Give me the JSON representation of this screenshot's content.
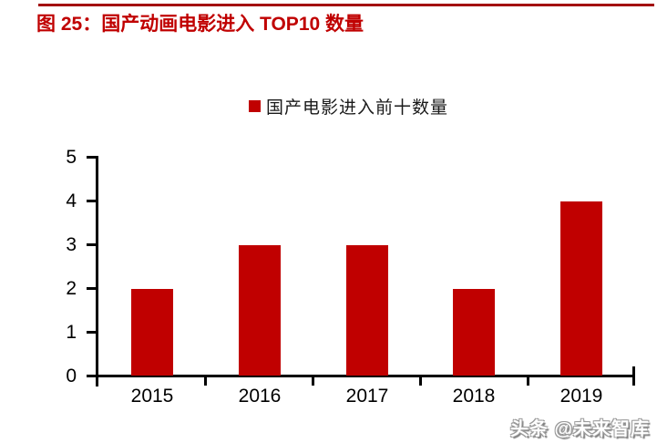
{
  "page": {
    "watermark": "头条 @未来智库"
  },
  "colors": {
    "title_red": "#c00000",
    "rule_red": "#a30f0f",
    "bar_red": "#c00000",
    "axis_black": "#000000",
    "legend_text": "#1a1a1a",
    "watermark_gray": "#9a9a9a"
  },
  "chart_data": {
    "type": "bar",
    "title": "图 25：国产动画电影进入 TOP10 数量",
    "categories": [
      "2015",
      "2016",
      "2017",
      "2018",
      "2019"
    ],
    "series": [
      {
        "name": "国产电影进入前十数量",
        "values": [
          2,
          3,
          3,
          2,
          4
        ]
      }
    ],
    "xlabel": "",
    "ylabel": "",
    "ylim": [
      0,
      5
    ],
    "yticks": [
      0,
      1,
      2,
      3,
      4,
      5
    ],
    "grid": false,
    "legend_position": "top-center",
    "bar_color": "#c00000"
  }
}
